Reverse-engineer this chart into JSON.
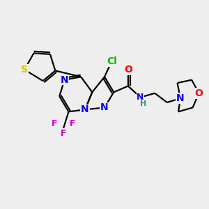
{
  "bg_color": "#eeeeee",
  "bond_color": "#000000",
  "bond_lw": 1.6,
  "atom_colors": {
    "N": "#0000ff",
    "O": "#ff0000",
    "S": "#cccc00",
    "Cl": "#00bb00",
    "F": "#cc00cc",
    "H_amide": "#448888",
    "C": "#000000"
  },
  "font_size": 9
}
